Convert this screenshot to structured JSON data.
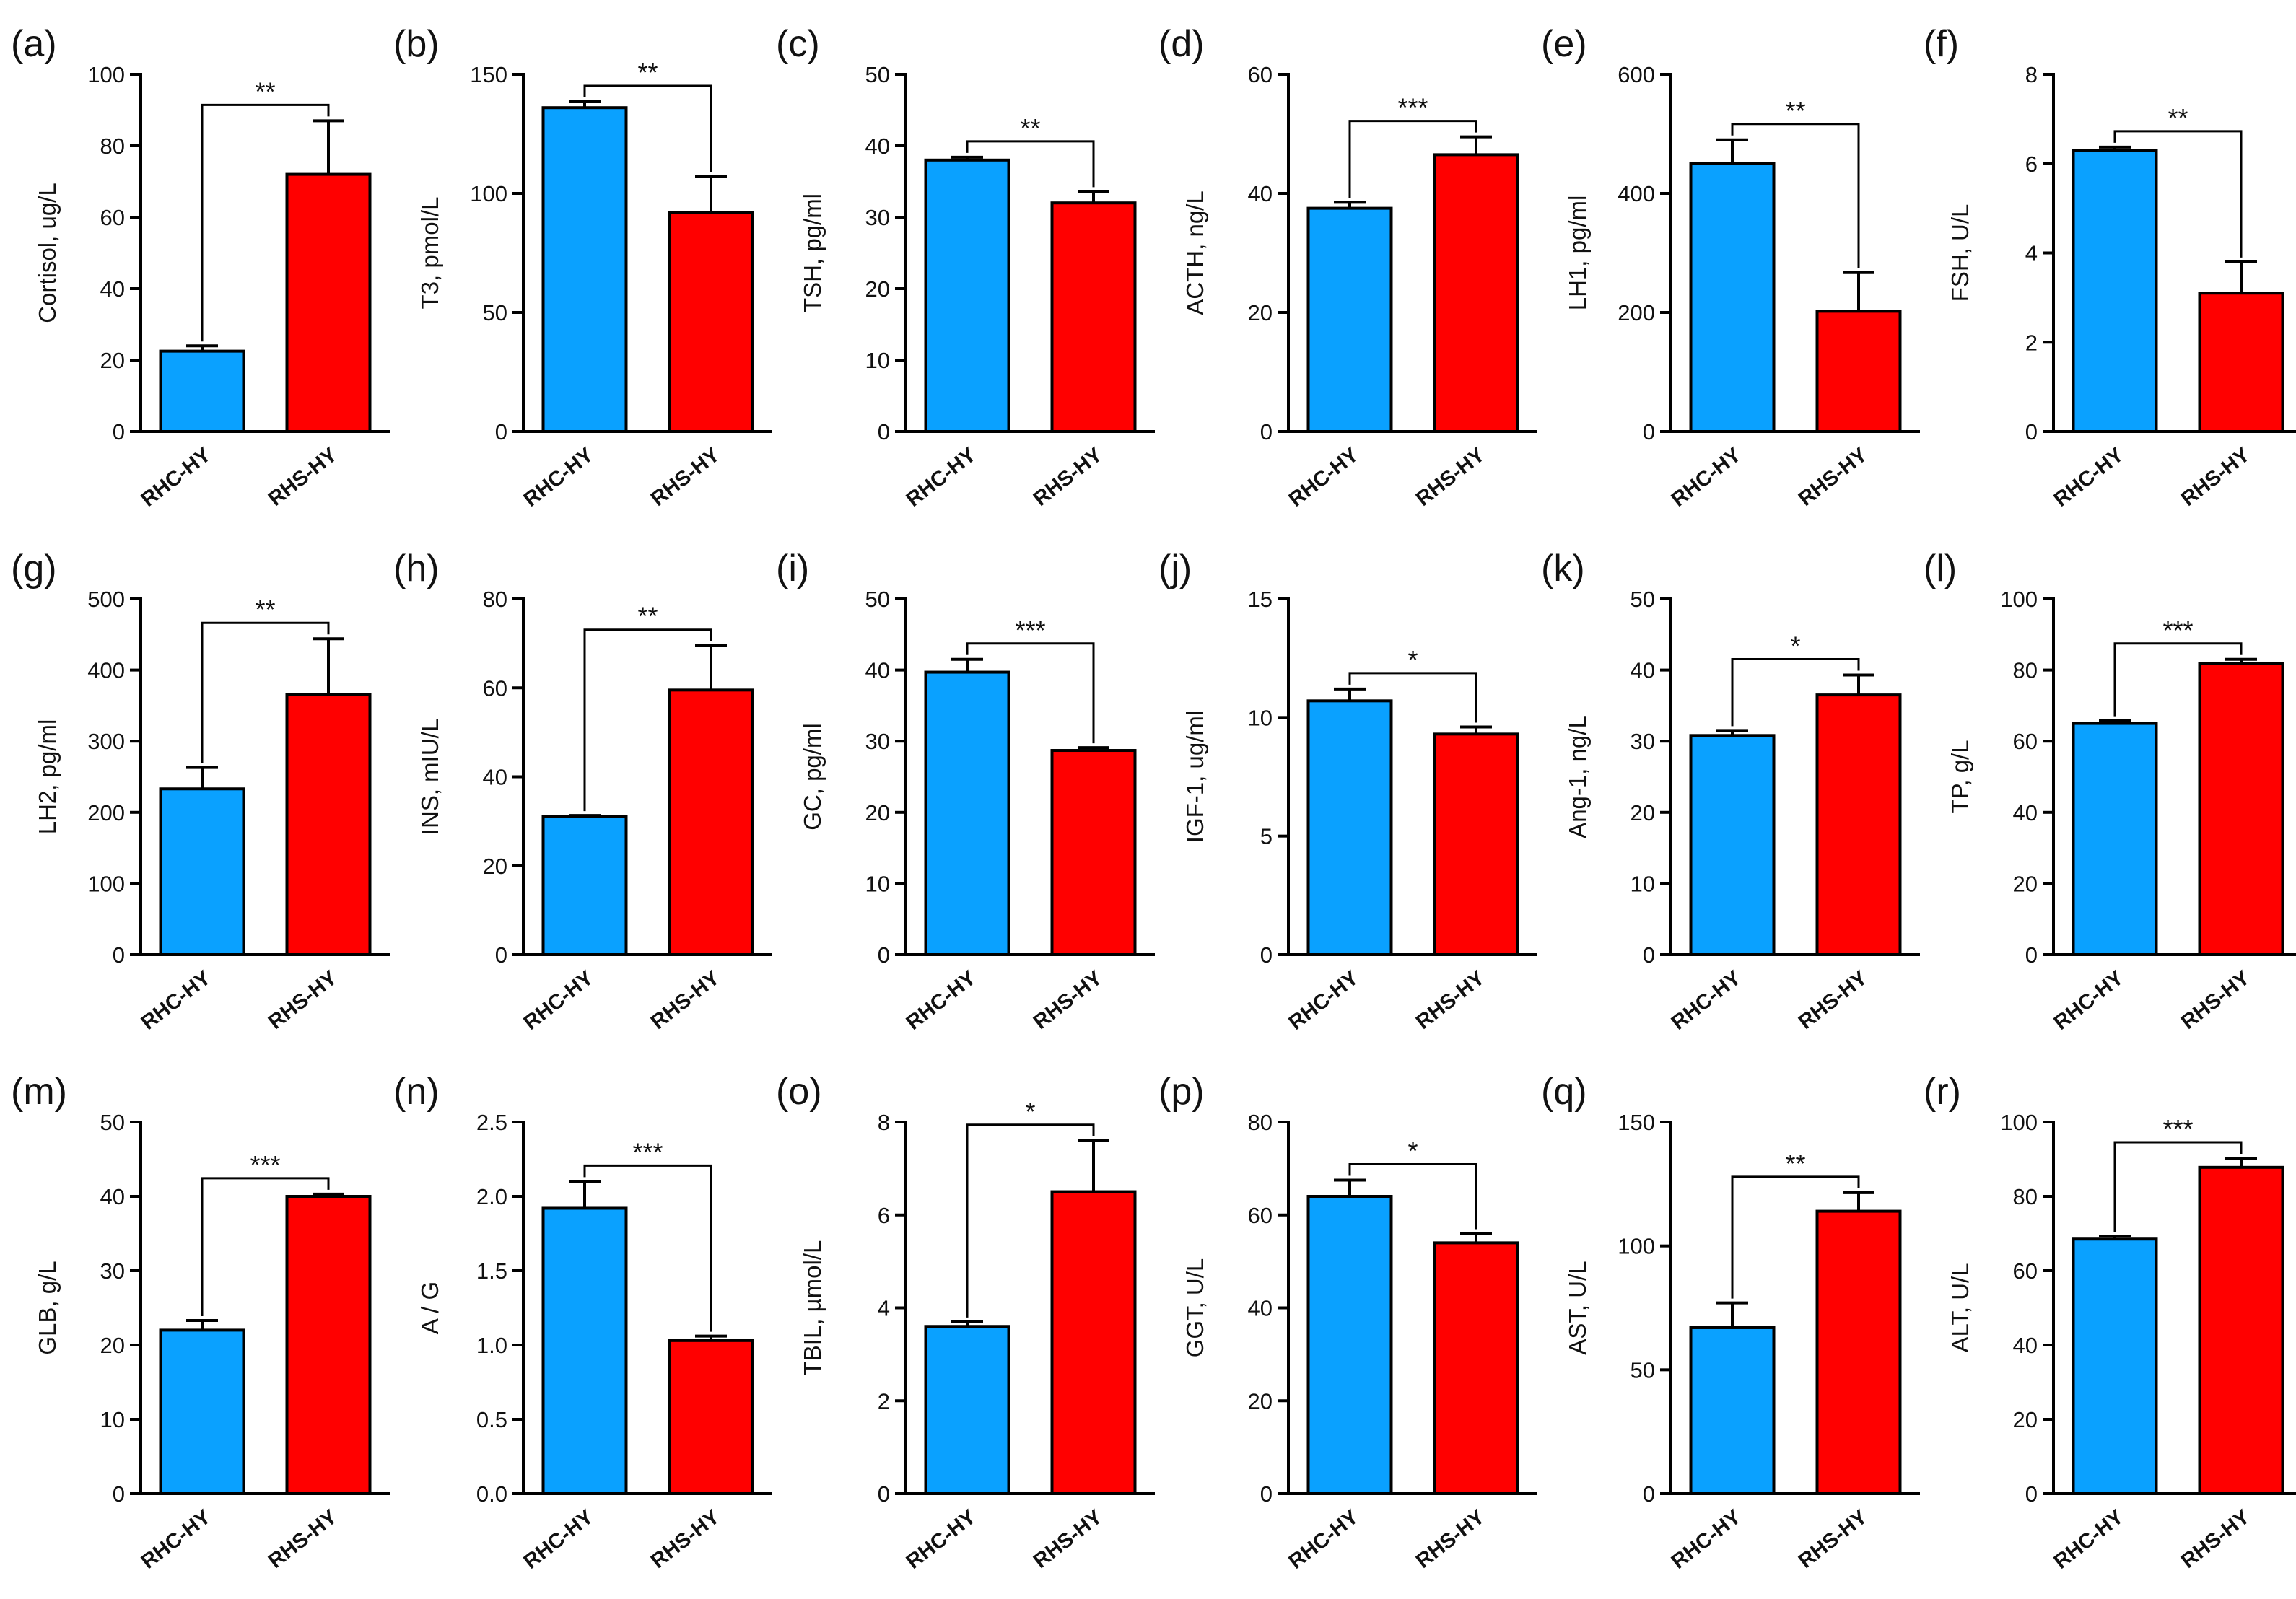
{
  "figure": {
    "categories": [
      "RHC-HY",
      "RHS-HY"
    ],
    "colors": {
      "RHC-HY": "#0aa1ff",
      "RHS-HY": "#ff0000"
    }
  },
  "chart_data": [
    {
      "panel": "(a)",
      "type": "bar",
      "categories": [
        "RHC-HY",
        "RHS-HY"
      ],
      "values": [
        22.5,
        72
      ],
      "errors": [
        1.5,
        15
      ],
      "ylabel": "Cortisol, ug/L",
      "ylim": [
        0,
        100
      ],
      "yticks": [
        0,
        20,
        40,
        60,
        80,
        100
      ],
      "significance": "**"
    },
    {
      "panel": "(b)",
      "type": "bar",
      "categories": [
        "RHC-HY",
        "RHS-HY"
      ],
      "values": [
        136,
        92
      ],
      "errors": [
        2.5,
        15
      ],
      "ylabel": "T3, pmol/L",
      "ylim": [
        0,
        150
      ],
      "yticks": [
        0,
        50,
        100,
        150
      ],
      "significance": "**"
    },
    {
      "panel": "(c)",
      "type": "bar",
      "categories": [
        "RHC-HY",
        "RHS-HY"
      ],
      "values": [
        38,
        32
      ],
      "errors": [
        0.4,
        1.6
      ],
      "ylabel": "TSH, pg/ml",
      "ylim": [
        0,
        50
      ],
      "yticks": [
        0,
        10,
        20,
        30,
        40,
        50
      ],
      "significance": "**"
    },
    {
      "panel": "(d)",
      "type": "bar",
      "categories": [
        "RHC-HY",
        "RHS-HY"
      ],
      "values": [
        37.5,
        46.5
      ],
      "errors": [
        1,
        3
      ],
      "ylabel": "ACTH, ng/L",
      "ylim": [
        0,
        60
      ],
      "yticks": [
        0,
        20,
        40,
        60
      ],
      "significance": "***"
    },
    {
      "panel": "(e)",
      "type": "bar",
      "categories": [
        "RHC-HY",
        "RHS-HY"
      ],
      "values": [
        450,
        202
      ],
      "errors": [
        40,
        65
      ],
      "ylabel": "LH1, pg/ml",
      "ylim": [
        0,
        600
      ],
      "yticks": [
        0,
        200,
        400,
        600
      ],
      "significance": "**"
    },
    {
      "panel": "(f)",
      "type": "bar",
      "categories": [
        "RHC-HY",
        "RHS-HY"
      ],
      "values": [
        6.3,
        3.1
      ],
      "errors": [
        0.07,
        0.7
      ],
      "ylabel": "FSH, U/L",
      "ylim": [
        0,
        8
      ],
      "yticks": [
        0,
        2,
        4,
        6,
        8
      ],
      "significance": "**"
    },
    {
      "panel": "(g)",
      "type": "bar",
      "categories": [
        "RHC-HY",
        "RHS-HY"
      ],
      "values": [
        233,
        366
      ],
      "errors": [
        30,
        78
      ],
      "ylabel": "LH2, pg/ml",
      "ylim": [
        0,
        500
      ],
      "yticks": [
        0,
        100,
        200,
        300,
        400,
        500
      ],
      "significance": "**"
    },
    {
      "panel": "(h)",
      "type": "bar",
      "categories": [
        "RHC-HY",
        "RHS-HY"
      ],
      "values": [
        31,
        59.5
      ],
      "errors": [
        0.3,
        10
      ],
      "ylabel": "INS, mIU/L",
      "ylim": [
        0,
        80
      ],
      "yticks": [
        0,
        20,
        40,
        60,
        80
      ],
      "significance": "**"
    },
    {
      "panel": "(i)",
      "type": "bar",
      "categories": [
        "RHC-HY",
        "RHS-HY"
      ],
      "values": [
        39.7,
        28.7
      ],
      "errors": [
        1.8,
        0.4
      ],
      "ylabel": "GC, pg/ml",
      "ylim": [
        0,
        50
      ],
      "yticks": [
        0,
        10,
        20,
        30,
        40,
        50
      ],
      "significance": "***"
    },
    {
      "panel": "(j)",
      "type": "bar",
      "categories": [
        "RHC-HY",
        "RHS-HY"
      ],
      "values": [
        10.7,
        9.3
      ],
      "errors": [
        0.5,
        0.3
      ],
      "ylabel": "IGF-1, ug/ml",
      "ylim": [
        0,
        15
      ],
      "yticks": [
        0,
        5,
        10,
        15
      ],
      "significance": "*"
    },
    {
      "panel": "(k)",
      "type": "bar",
      "categories": [
        "RHC-HY",
        "RHS-HY"
      ],
      "values": [
        30.8,
        36.5
      ],
      "errors": [
        0.7,
        2.8
      ],
      "ylabel": "Ang-1, ng/L",
      "ylim": [
        0,
        50
      ],
      "yticks": [
        0,
        10,
        20,
        30,
        40,
        50
      ],
      "significance": "*"
    },
    {
      "panel": "(l)",
      "type": "bar",
      "categories": [
        "RHC-HY",
        "RHS-HY"
      ],
      "values": [
        65,
        81.8
      ],
      "errors": [
        0.8,
        1.2
      ],
      "ylabel": "TP, g/L",
      "ylim": [
        0,
        100
      ],
      "yticks": [
        0,
        20,
        40,
        60,
        80,
        100
      ],
      "significance": "***"
    },
    {
      "panel": "(m)",
      "type": "bar",
      "categories": [
        "RHC-HY",
        "RHS-HY"
      ],
      "values": [
        22,
        40
      ],
      "errors": [
        1.3,
        0.3
      ],
      "ylabel": "GLB, g/L",
      "ylim": [
        0,
        50
      ],
      "yticks": [
        0,
        10,
        20,
        30,
        40,
        50
      ],
      "significance": "***"
    },
    {
      "panel": "(n)",
      "type": "bar",
      "categories": [
        "RHC-HY",
        "RHS-HY"
      ],
      "values": [
        1.92,
        1.03
      ],
      "errors": [
        0.18,
        0.03
      ],
      "ylabel": "A / G",
      "ylim": [
        0,
        2.5
      ],
      "yticks": [
        "0.0",
        "0.5",
        "1.0",
        "1.5",
        "2.0",
        "2.5"
      ],
      "significance": "***"
    },
    {
      "panel": "(o)",
      "type": "bar",
      "categories": [
        "RHC-HY",
        "RHS-HY"
      ],
      "values": [
        3.6,
        6.5
      ],
      "errors": [
        0.1,
        1.1
      ],
      "ylabel": "TBIL, µmol/L",
      "ylim": [
        0,
        8
      ],
      "yticks": [
        0,
        2,
        4,
        6,
        8
      ],
      "significance": "*"
    },
    {
      "panel": "(p)",
      "type": "bar",
      "categories": [
        "RHC-HY",
        "RHS-HY"
      ],
      "values": [
        64,
        54
      ],
      "errors": [
        3.5,
        2
      ],
      "ylabel": "GGT, U/L",
      "ylim": [
        0,
        80
      ],
      "yticks": [
        0,
        20,
        40,
        60,
        80
      ],
      "significance": "*"
    },
    {
      "panel": "(q)",
      "type": "bar",
      "categories": [
        "RHC-HY",
        "RHS-HY"
      ],
      "values": [
        67,
        114
      ],
      "errors": [
        10,
        7.5
      ],
      "ylabel": "AST, U/L",
      "ylim": [
        0,
        150
      ],
      "yticks": [
        0,
        50,
        100,
        150
      ],
      "significance": "**"
    },
    {
      "panel": "(r)",
      "type": "bar",
      "categories": [
        "RHC-HY",
        "RHS-HY"
      ],
      "values": [
        68.5,
        87.8
      ],
      "errors": [
        0.8,
        2.5
      ],
      "ylabel": "ALT, U/L",
      "ylim": [
        0,
        100
      ],
      "yticks": [
        0,
        20,
        40,
        60,
        80,
        100
      ],
      "significance": "***"
    }
  ]
}
